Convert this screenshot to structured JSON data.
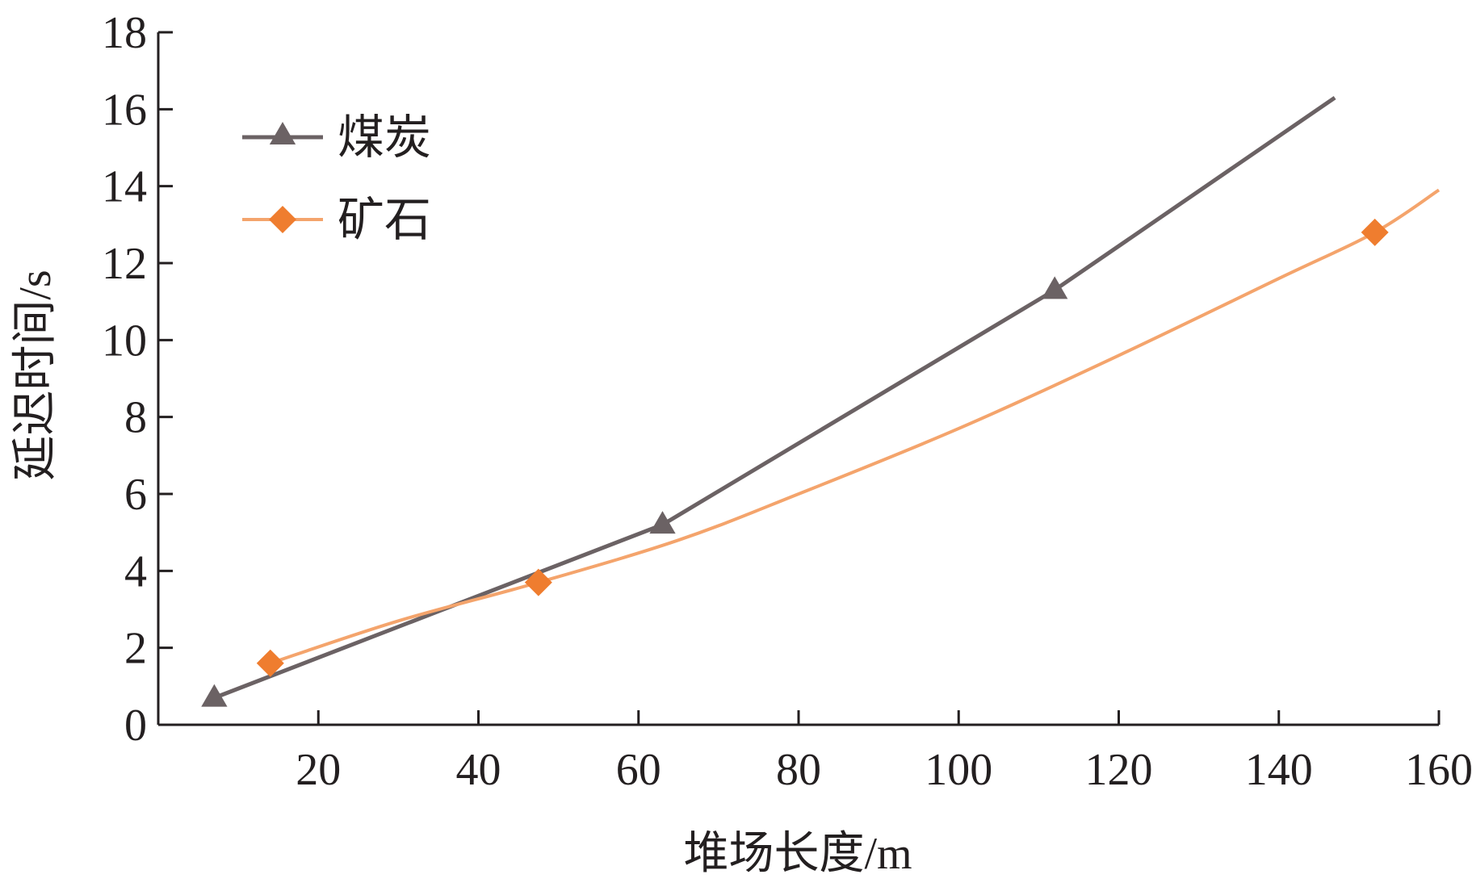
{
  "chart_data": {
    "type": "line",
    "title": "",
    "xlabel": "堆场长度/m",
    "ylabel": "延迟时间/s",
    "xlim": [
      0,
      160
    ],
    "ylim": [
      0,
      18
    ],
    "xticks": [
      20,
      40,
      60,
      80,
      100,
      120,
      140,
      160
    ],
    "yticks": [
      0,
      2,
      4,
      6,
      8,
      10,
      12,
      14,
      16,
      18
    ],
    "grid": false,
    "legend_position": "top-left",
    "series": [
      {
        "name": "煤炭",
        "color": "#6b6264",
        "marker": "triangle",
        "line_points": [
          [
            7,
            0.7
          ],
          [
            63,
            5.2
          ],
          [
            112,
            11.3
          ],
          [
            147,
            16.3
          ]
        ],
        "markers": [
          [
            7,
            0.7
          ],
          [
            63,
            5.2
          ],
          [
            112,
            11.3
          ]
        ]
      },
      {
        "name": "矿石",
        "color": "#f4a46c",
        "marker_color": "#ef7d2f",
        "marker": "diamond",
        "line_points": [
          [
            14,
            1.6
          ],
          [
            30,
            2.7
          ],
          [
            47.5,
            3.7
          ],
          [
            65,
            4.8
          ],
          [
            80,
            6.0
          ],
          [
            100,
            7.7
          ],
          [
            120,
            9.6
          ],
          [
            140,
            11.6
          ],
          [
            152,
            12.8
          ],
          [
            160,
            13.9
          ]
        ],
        "markers": [
          [
            14,
            1.6
          ],
          [
            47.5,
            3.7
          ],
          [
            152,
            12.8
          ]
        ]
      }
    ]
  }
}
